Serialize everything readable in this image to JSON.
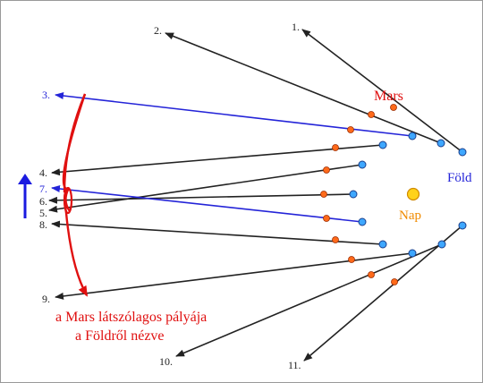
{
  "labels": [
    "1.",
    "2.",
    "3.",
    "4.",
    "5.",
    "6.",
    "7.",
    "8.",
    "9.",
    "10.",
    "11."
  ],
  "mars": "Mars",
  "earth": "Föld",
  "sun": "Nap",
  "caption": [
    "a Mars látszólagos pályája",
    "a Földről nézve"
  ]
}
